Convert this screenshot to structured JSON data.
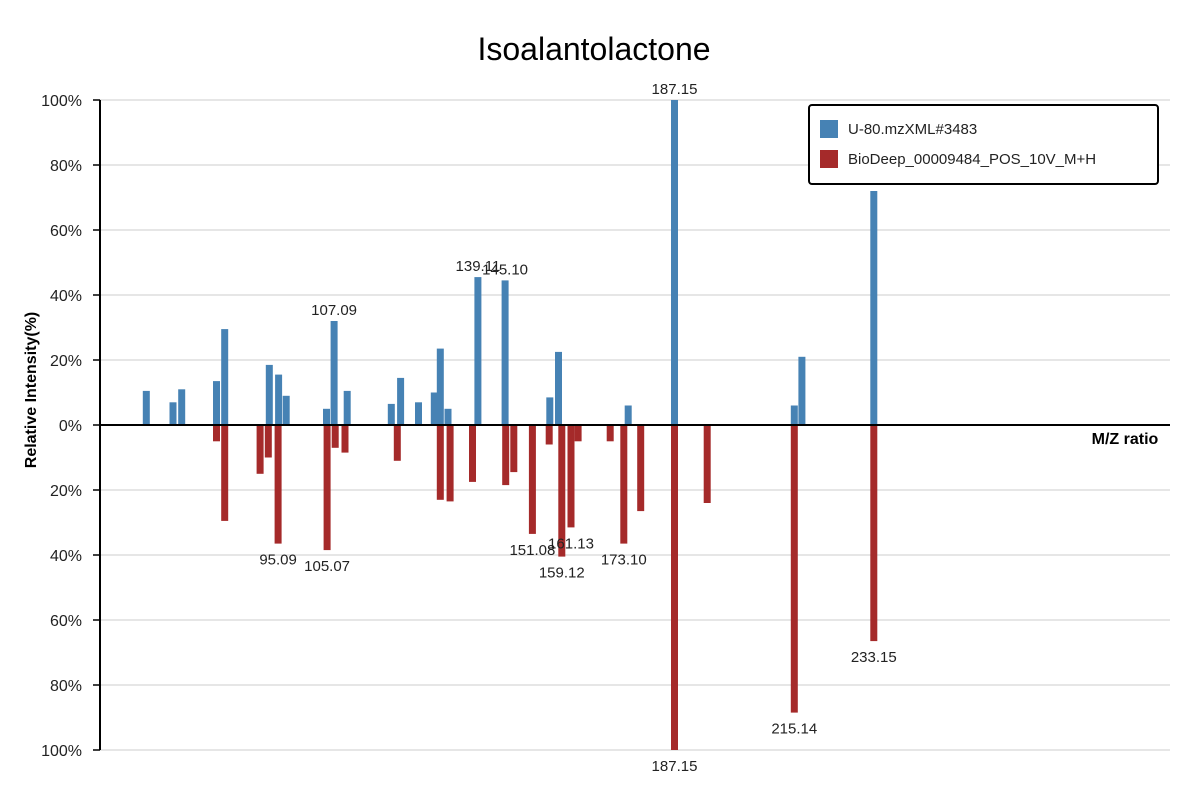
{
  "chart_data": {
    "type": "bar",
    "title": "Isoalantolactone",
    "ylabel": "Relative Intensity(%)",
    "xlabel": "M/Z ratio",
    "ylim": [
      -100,
      100
    ],
    "x_range": [
      65.5,
      262.0
    ],
    "y_tick_labels": [
      "100%",
      "80%",
      "60%",
      "40%",
      "20%",
      "0%",
      "20%",
      "40%",
      "60%",
      "80%",
      "100%"
    ],
    "grid": true,
    "legend_position": "top-right",
    "colors": {
      "query": "#4682B4",
      "reference": "#A52A2A"
    },
    "series": [
      {
        "name": "U-80.mzXML#3483",
        "direction": "up",
        "peaks": [
          [
            74.0,
            10.5
          ],
          [
            78.9,
            7.0
          ],
          [
            80.5,
            11.0
          ],
          [
            86.9,
            13.5
          ],
          [
            88.4,
            29.5
          ],
          [
            96.6,
            18.5
          ],
          [
            98.3,
            15.5
          ],
          [
            99.7,
            9.0
          ],
          [
            107.09,
            5.0
          ],
          [
            108.5,
            32.0
          ],
          [
            110.9,
            10.5
          ],
          [
            119.0,
            6.5
          ],
          [
            120.7,
            14.5
          ],
          [
            124.0,
            7.0
          ],
          [
            126.9,
            10.0
          ],
          [
            128.0,
            23.5
          ],
          [
            129.4,
            5.0
          ],
          [
            134.9,
            45.5
          ],
          [
            139.9,
            44.5
          ],
          [
            148.1,
            8.5
          ],
          [
            149.7,
            22.5
          ],
          [
            162.5,
            6.0
          ],
          [
            171.0,
            100
          ],
          [
            193.0,
            6.0
          ],
          [
            194.4,
            21.0
          ],
          [
            207.6,
            72.0
          ]
        ]
      },
      {
        "name": "BioDeep_00009484_POS_10V_M+H",
        "direction": "down",
        "peaks": [
          [
            86.9,
            5.0
          ],
          [
            88.4,
            29.5
          ],
          [
            94.9,
            15.0
          ],
          [
            96.4,
            10.0
          ],
          [
            98.2,
            36.5
          ],
          [
            107.2,
            38.5
          ],
          [
            108.7,
            7.0
          ],
          [
            110.5,
            8.5
          ],
          [
            120.1,
            11.0
          ],
          [
            128.0,
            23.0
          ],
          [
            129.8,
            23.5
          ],
          [
            133.9,
            17.5
          ],
          [
            140.0,
            18.5
          ],
          [
            141.5,
            14.5
          ],
          [
            144.9,
            33.5
          ],
          [
            148.0,
            6.0
          ],
          [
            150.3,
            40.5
          ],
          [
            152.0,
            31.5
          ],
          [
            153.3,
            5.0
          ],
          [
            159.2,
            5.0
          ],
          [
            161.7,
            36.5
          ],
          [
            164.8,
            26.5
          ],
          [
            171.0,
            100
          ],
          [
            177.0,
            24.0
          ],
          [
            193.0,
            88.5
          ],
          [
            207.6,
            66.5
          ]
        ]
      }
    ],
    "peak_labels": [
      {
        "series": 0,
        "text": "187.15",
        "x": 171.0,
        "y": 100
      },
      {
        "series": 0,
        "text": "107.09",
        "x": 108.5,
        "y": 32.0
      },
      {
        "series": 0,
        "text": "139.11",
        "x": 134.9,
        "y": 45.5
      },
      {
        "series": 0,
        "text": "145.10",
        "x": 139.9,
        "y": 44.5
      },
      {
        "series": 1,
        "text": "95.09",
        "x": 98.2,
        "y": 36.5
      },
      {
        "series": 1,
        "text": "105.07",
        "x": 107.2,
        "y": 38.5
      },
      {
        "series": 1,
        "text": "151.08",
        "x": 144.9,
        "y": 33.5
      },
      {
        "series": 1,
        "text": "161.13",
        "x": 152.0,
        "y": 31.5
      },
      {
        "series": 1,
        "text": "159.12",
        "x": 150.3,
        "y": 40.5
      },
      {
        "series": 1,
        "text": "173.10",
        "x": 161.7,
        "y": 36.5
      },
      {
        "series": 1,
        "text": "187.15",
        "x": 171.0,
        "y": 100
      },
      {
        "series": 1,
        "text": "215.14",
        "x": 193.0,
        "y": 88.5
      },
      {
        "series": 1,
        "text": "233.15",
        "x": 207.6,
        "y": 66.5
      }
    ]
  }
}
